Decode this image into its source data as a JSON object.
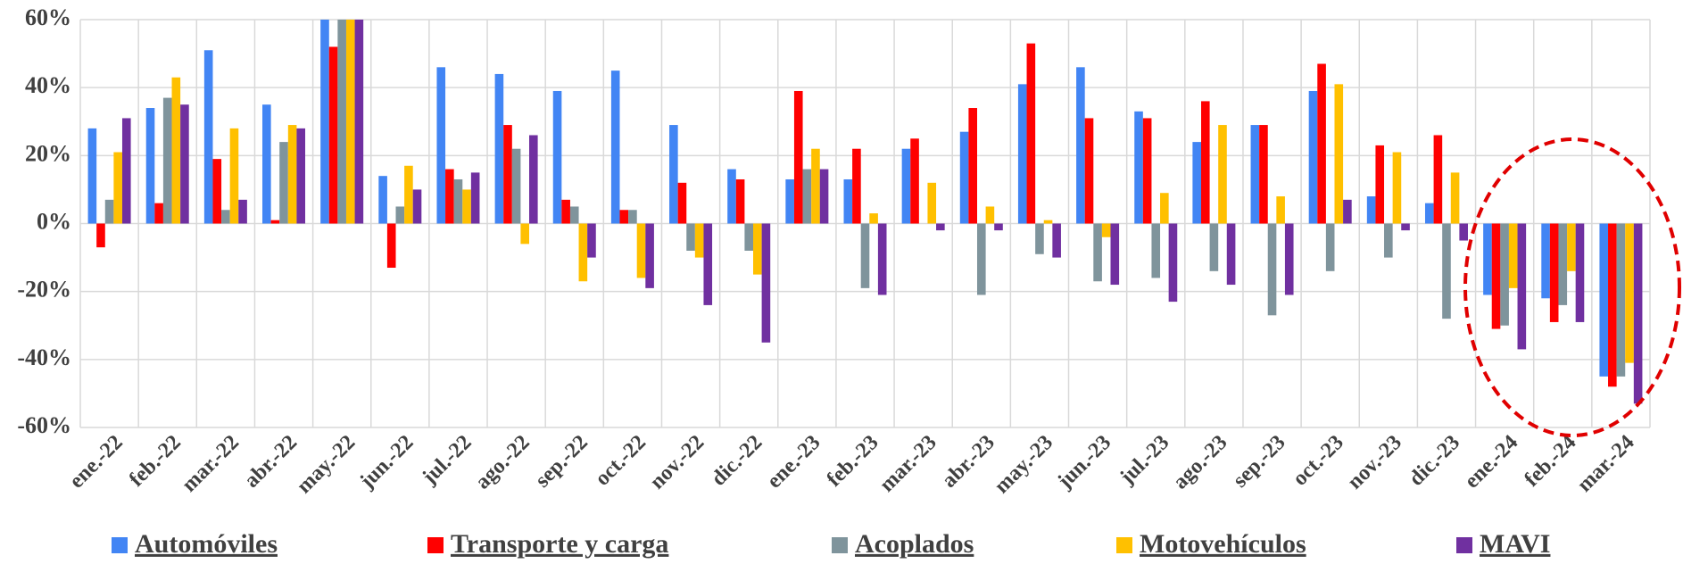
{
  "chart_data": {
    "type": "bar",
    "categories": [
      "ene.-22",
      "feb.-22",
      "mar.-22",
      "abr.-22",
      "may.-22",
      "jun.-22",
      "jul.-22",
      "ago.-22",
      "sep.-22",
      "oct.-22",
      "nov.-22",
      "dic.-22",
      "ene.-23",
      "feb.-23",
      "mar.-23",
      "abr.-23",
      "may.-23",
      "jun.-23",
      "jul.-23",
      "ago.-23",
      "sep.-23",
      "oct.-23",
      "nov.-23",
      "dic.-23",
      "ene.-24",
      "feb.-24",
      "mar.-24"
    ],
    "series": [
      {
        "name": "Automóviles",
        "color": "#4285f4",
        "values": [
          28,
          34,
          51,
          35,
          62,
          14,
          46,
          44,
          39,
          45,
          29,
          16,
          13,
          13,
          22,
          27,
          41,
          46,
          33,
          24,
          29,
          39,
          8,
          6,
          -21,
          -22,
          -45
        ]
      },
      {
        "name": "Transporte y carga",
        "color": "#ff0000",
        "values": [
          -7,
          6,
          19,
          1,
          52,
          -13,
          16,
          29,
          7,
          4,
          12,
          13,
          39,
          22,
          25,
          34,
          53,
          31,
          31,
          36,
          29,
          47,
          23,
          26,
          -31,
          -29,
          -48
        ]
      },
      {
        "name": "Acoplados",
        "color": "#7f949c",
        "values": [
          7,
          37,
          4,
          24,
          65,
          5,
          13,
          22,
          5,
          4,
          -8,
          -8,
          16,
          -19,
          0,
          -21,
          -9,
          -17,
          -16,
          -14,
          -27,
          -14,
          -10,
          -28,
          -30,
          -24,
          -45
        ]
      },
      {
        "name": "Motovehículos",
        "color": "#ffc000",
        "values": [
          21,
          43,
          28,
          29,
          70,
          17,
          10,
          -6,
          -17,
          -16,
          -10,
          -15,
          22,
          3,
          12,
          5,
          1,
          -4,
          9,
          29,
          8,
          41,
          21,
          15,
          -19,
          -14,
          -41
        ]
      },
      {
        "name": "MAVI",
        "color": "#7030a0",
        "values": [
          31,
          35,
          7,
          28,
          68,
          10,
          15,
          26,
          -10,
          -19,
          -24,
          -35,
          16,
          -21,
          -2,
          -2,
          -10,
          -18,
          -23,
          -18,
          -21,
          7,
          -2,
          -5,
          -37,
          -29,
          -53
        ]
      }
    ],
    "ylim": [
      -60,
      60
    ],
    "yticks": [
      {
        "value": -60,
        "label": "-60%"
      },
      {
        "value": -40,
        "label": "-40%"
      },
      {
        "value": -20,
        "label": "-20%"
      },
      {
        "value": 0,
        "label": "0%"
      },
      {
        "value": 20,
        "label": "20%"
      },
      {
        "value": 40,
        "label": "40%"
      },
      {
        "value": 60,
        "label": "60%"
      }
    ],
    "grid": true
  }
}
